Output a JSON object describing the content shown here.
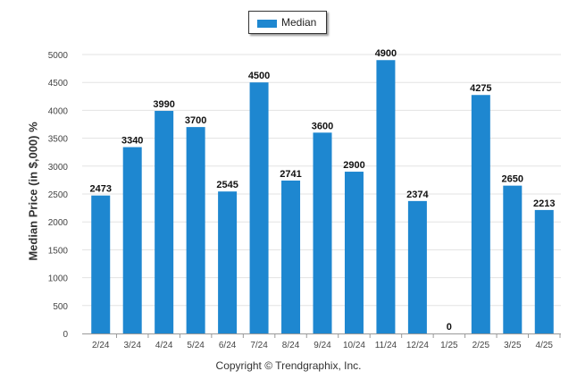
{
  "chart_data": {
    "type": "bar",
    "categories": [
      "2/24",
      "3/24",
      "4/24",
      "5/24",
      "6/24",
      "7/24",
      "8/24",
      "9/24",
      "10/24",
      "11/24",
      "12/24",
      "1/25",
      "2/25",
      "3/25",
      "4/25"
    ],
    "series": [
      {
        "name": "Median",
        "values": [
          2473,
          3340,
          3990,
          3700,
          2545,
          4500,
          2741,
          3600,
          2900,
          4900,
          2374,
          0,
          4275,
          2650,
          2213
        ]
      }
    ],
    "ylabel": "Median Price (in $,000) %",
    "xlabel": "",
    "ylim": [
      0,
      5000
    ],
    "yticks": [
      0,
      500,
      1000,
      1500,
      2000,
      2500,
      3000,
      3500,
      4000,
      4500,
      5000
    ],
    "grid": true,
    "legend": "top-center",
    "bar_color": "#1e87d0",
    "data_labels": true
  },
  "footer": {
    "copyright": "Copyright © Trendgraphix, Inc."
  }
}
